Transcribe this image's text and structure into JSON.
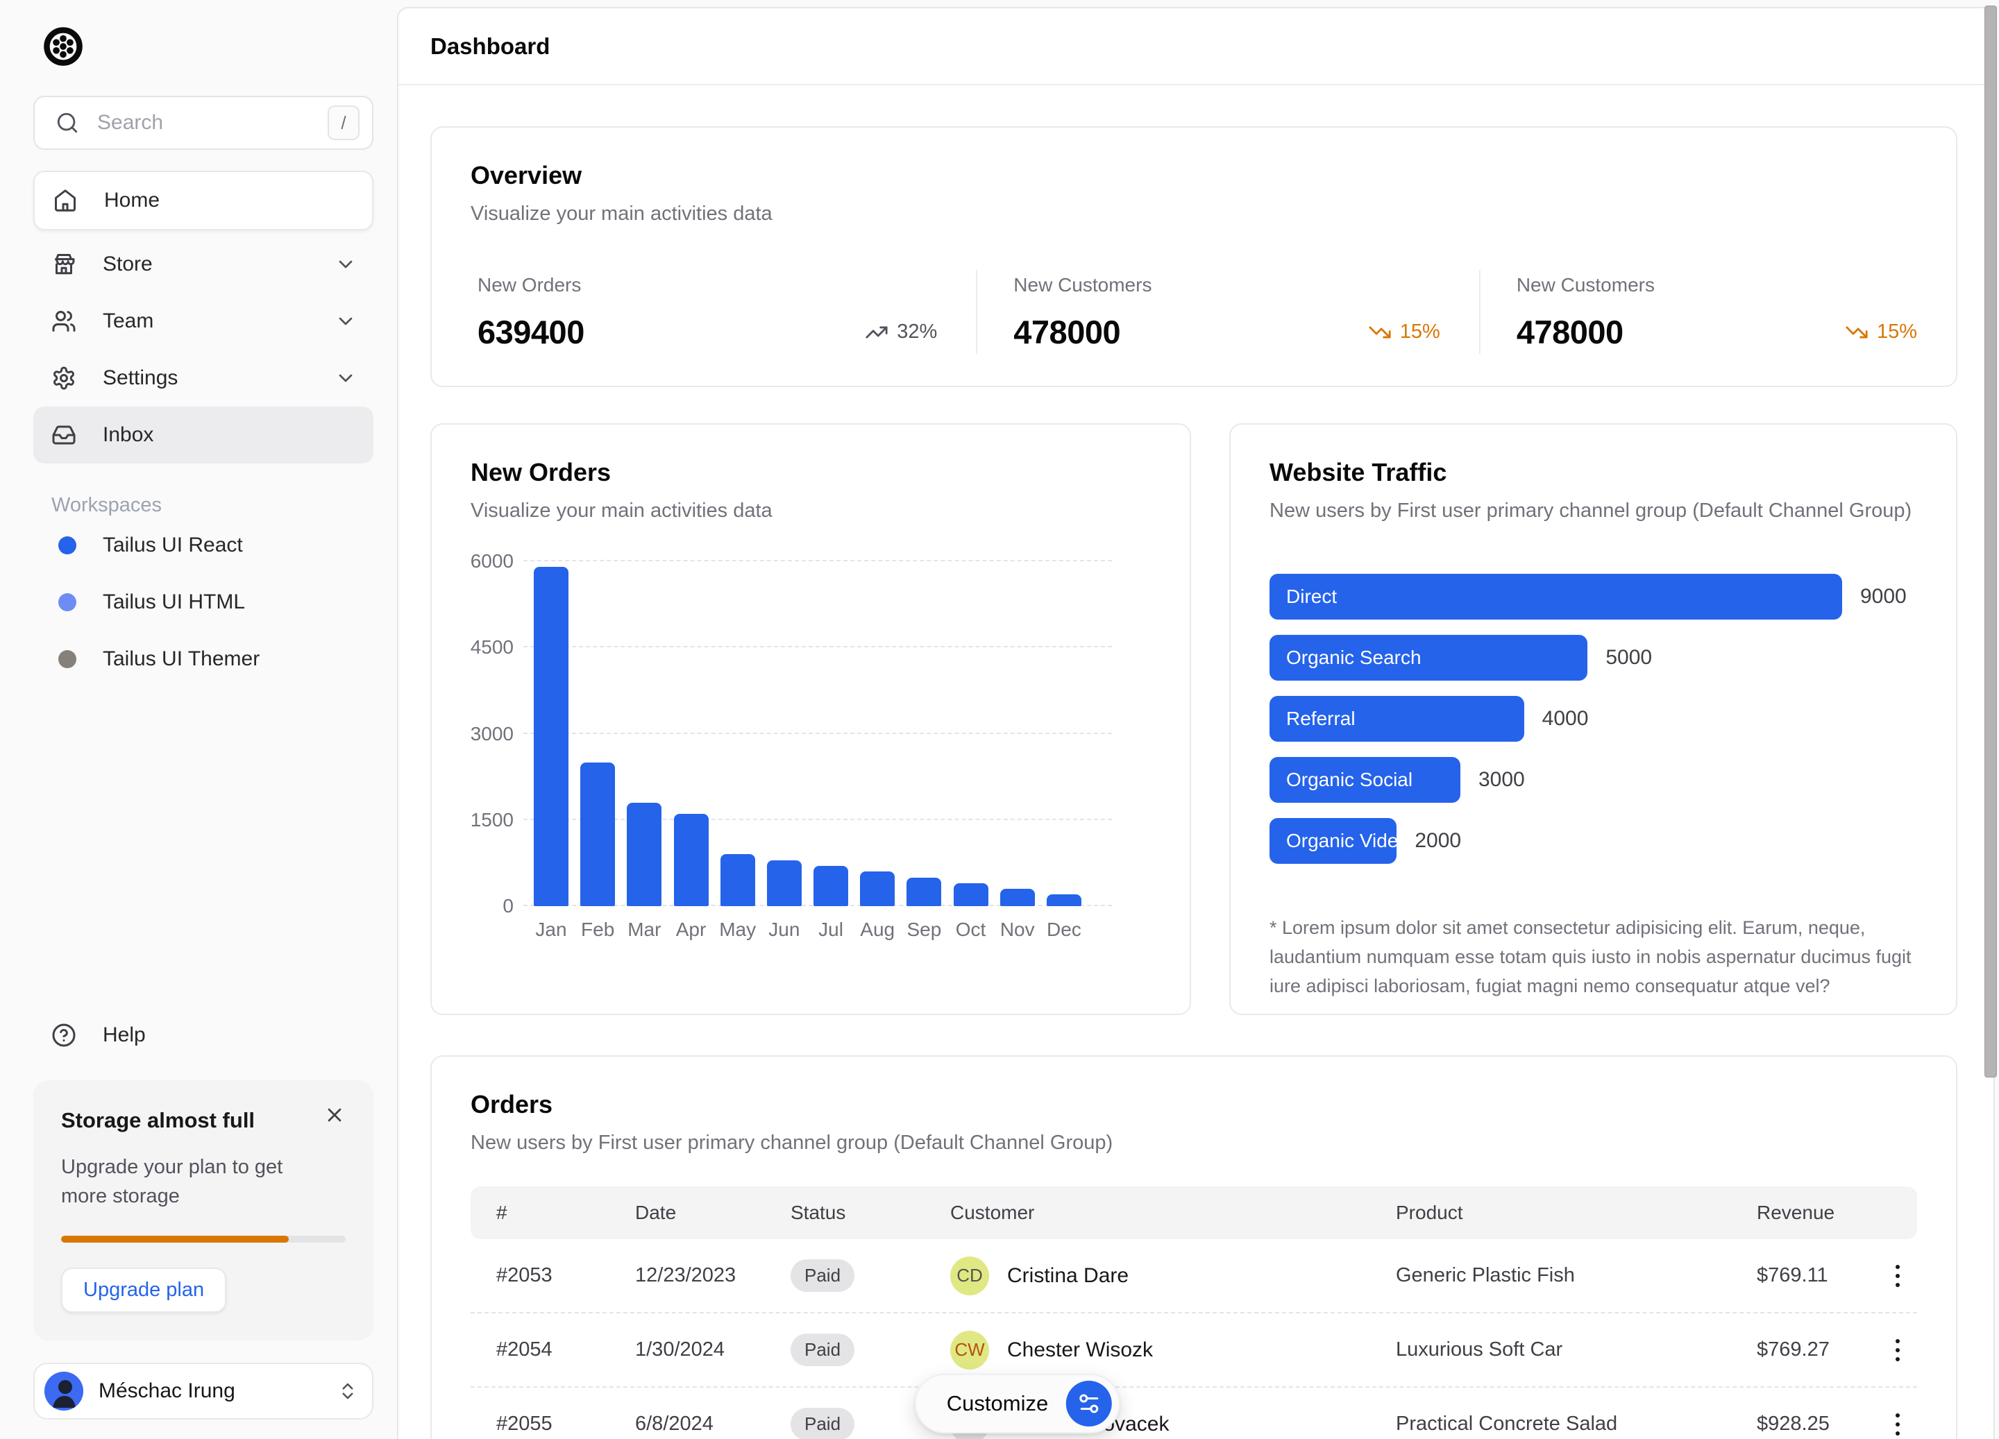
{
  "app": {
    "title": "Dashboard"
  },
  "sidebar": {
    "search": {
      "placeholder": "Search",
      "shortcut_key": "/"
    },
    "nav": [
      {
        "label": "Home"
      },
      {
        "label": "Store"
      },
      {
        "label": "Team"
      },
      {
        "label": "Settings"
      },
      {
        "label": "Inbox"
      }
    ],
    "workspaces": {
      "heading": "Workspaces",
      "items": [
        {
          "label": "Tailus UI React",
          "dot_color": "#2563eb"
        },
        {
          "label": "Tailus UI HTML",
          "dot_color": "#6d8df5"
        },
        {
          "label": "Tailus UI Themer",
          "dot_color": "#85807a"
        }
      ]
    },
    "help_label": "Help",
    "storage": {
      "title": "Storage almost full",
      "body": "Upgrade your plan to get more storage",
      "progress_pct": 80,
      "cta_label": "Upgrade plan"
    },
    "user": {
      "name": "Méschac Irung"
    }
  },
  "overview": {
    "title": "Overview",
    "subtitle": "Visualize your main activities data",
    "stats": [
      {
        "label": "New Orders",
        "value": "639400",
        "change": "32%",
        "direction": "up"
      },
      {
        "label": "New Customers",
        "value": "478000",
        "change": "15%",
        "direction": "down"
      },
      {
        "label": "New Customers",
        "value": "478000",
        "change": "15%",
        "direction": "down"
      }
    ]
  },
  "chart_data": [
    {
      "type": "bar",
      "title": "New Orders",
      "subtitle": "Visualize your main activities data",
      "categories": [
        "Jan",
        "Feb",
        "Mar",
        "Apr",
        "May",
        "Jun",
        "Jul",
        "Aug",
        "Sep",
        "Oct",
        "Nov",
        "Dec"
      ],
      "values": [
        5900,
        2500,
        1800,
        1600,
        900,
        800,
        700,
        600,
        500,
        400,
        300,
        200
      ],
      "yticks": [
        0,
        1500,
        3000,
        4500,
        6000
      ],
      "ylim": [
        0,
        6000
      ],
      "xlabel": "",
      "ylabel": "",
      "grid": "dashed-horizontal",
      "bar_color": "#2563eb",
      "legend": "none"
    },
    {
      "type": "bar-horizontal",
      "title": "Website Traffic",
      "subtitle": "New users by First user primary channel group (Default Channel Group)",
      "categories": [
        "Direct",
        "Organic Search",
        "Referral",
        "Organic Social",
        "Organic Video"
      ],
      "values": [
        9000,
        5000,
        4000,
        3000,
        2000
      ],
      "xmax": 9000,
      "bar_color": "#2563eb",
      "value_labels": [
        "9000",
        "5000",
        "4000",
        "3000",
        "2000"
      ],
      "footnote": "* Lorem ipsum dolor sit amet consectetur adipisicing elit. Earum, neque, laudantium numquam esse totam quis iusto in nobis aspernatur ducimus fugit iure adipisci laboriosam, fugiat magni nemo consequatur atque vel?"
    }
  ],
  "orders": {
    "title": "Orders",
    "subtitle": "New users by First user primary channel group (Default Channel Group)",
    "columns": [
      "#",
      "Date",
      "Status",
      "Customer",
      "Product",
      "Revenue"
    ],
    "rows": [
      {
        "id": "#2053",
        "date": "12/23/2023",
        "status": "Paid",
        "initials": "CD",
        "avatar_bg": "#e0e884",
        "avatar_fg": "#57534e",
        "customer": "Cristina Dare",
        "product": "Generic Plastic Fish",
        "revenue": "$769.11"
      },
      {
        "id": "#2054",
        "date": "1/30/2024",
        "status": "Paid",
        "initials": "CW",
        "avatar_bg": "#e0e884",
        "avatar_fg": "#b45309",
        "customer": "Chester Wisozk",
        "product": "Luxurious Soft Car",
        "revenue": "$769.27"
      },
      {
        "id": "#2055",
        "date": "6/8/2024",
        "status": "Paid",
        "initials": "PK",
        "avatar_bg": "#e4e4e7",
        "avatar_fg": "#3f3f46",
        "customer": "Paulette Kovacek",
        "product": "Practical Concrete Salad",
        "revenue": "$928.25"
      }
    ]
  },
  "customize": {
    "label": "Customize"
  },
  "colors": {
    "accent": "#2563eb",
    "warning": "#d97706",
    "bar_blue": "#2563eb"
  }
}
